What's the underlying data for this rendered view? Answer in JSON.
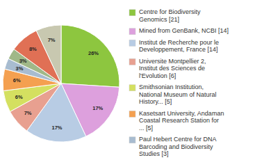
{
  "chart_data": {
    "type": "pie",
    "categories": [
      "Centre for Biodiversity\nGenomics [21]",
      "Mined from GenBank, NCBI [14]",
      "Institut de Recherche pour le\nDeveloppement, France [14]",
      "Universite Montpellier 2,\nInstitut des Sciences de\nl'Evolution [6]",
      "Smithsonian Institution,\nNational Museum of Natural\nHistory... [5]",
      "Kasetsart University, Andaman\nCoastal Research Station for\n... [5]",
      "Paul Hebert Centre for DNA\nBarcoding and Biodiversity\nStudies [3]",
      null,
      null,
      null
    ],
    "values": [
      26,
      17,
      17,
      7,
      6,
      6,
      3,
      3,
      8,
      7
    ],
    "value_labels": [
      "26%",
      "17%",
      "17%",
      "7%",
      "6%",
      "6%",
      "3%",
      "3%",
      "8%",
      "7%"
    ],
    "colors": [
      "#8dc63f",
      "#dda0dd",
      "#b8cce4",
      "#e8a090",
      "#d4e060",
      "#f4a050",
      "#a8bcd0",
      "#a0b888",
      "#e07055",
      "#c8c8b0"
    ],
    "data_labels": true,
    "legend": "right"
  }
}
